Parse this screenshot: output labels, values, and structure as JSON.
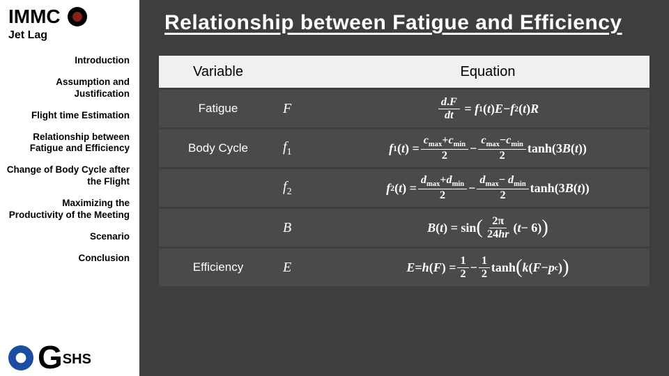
{
  "colors": {
    "main_bg": "#3e3e3e",
    "row_bg": "#4a4a4a",
    "header_bg": "#f0f0f0",
    "sidebar_bg": "#ffffff",
    "text_light": "#ffffff",
    "text_dark": "#000000"
  },
  "brand": {
    "name": "IMMC",
    "subtitle": "Jet Lag"
  },
  "nav": {
    "items": [
      {
        "label": "Introduction",
        "active": false
      },
      {
        "label": "Assumption and Justification",
        "active": false
      },
      {
        "label": "Flight time Estimation",
        "active": false
      },
      {
        "label": "Relationship between Fatigue and Efficiency",
        "active": true
      },
      {
        "label": "Change of Body Cycle after the Flight",
        "active": false
      },
      {
        "label": "Maximizing the Productivity of the Meeting",
        "active": false
      },
      {
        "label": "Scenario",
        "active": false
      },
      {
        "label": "Conclusion",
        "active": false
      }
    ]
  },
  "footer": {
    "big": "G",
    "small": "SHS"
  },
  "slide": {
    "title": "Relationship between Fatigue and Efficiency",
    "table": {
      "headers": {
        "variable": "Variable",
        "equation": "Equation"
      },
      "rows": [
        {
          "variable": "Fatigue",
          "symbol": "F",
          "equation_tex": "dF/dt = f_1(t) E − f_2(t) R"
        },
        {
          "variable": "Body Cycle",
          "symbol": "f1",
          "equation_tex": "f_1(t) = (c_max + c_min)/2 − (c_max − c_min)/2 · tanh(3B(t))"
        },
        {
          "variable": "",
          "symbol": "f2",
          "equation_tex": "f_2(t) = (d_max + d_min)/2 − (d_max − d_min)/2 · tanh(3B(t))"
        },
        {
          "variable": "",
          "symbol": "B",
          "equation_tex": "B(t) = sin( 2π / 24hr · (t − 6) )"
        },
        {
          "variable": "Efficiency",
          "symbol": "E",
          "equation_tex": "E = h(F) = 1/2 − 1/2 · tanh( k(F − p_c) )"
        }
      ]
    }
  }
}
